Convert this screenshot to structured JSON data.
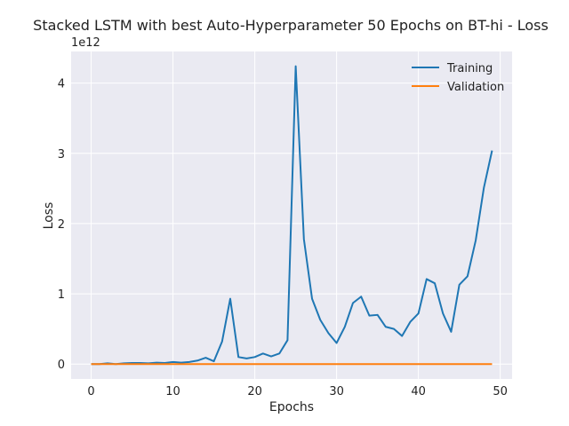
{
  "chart_data": {
    "type": "line",
    "title": "Stacked LSTM with best Auto-Hyperparameter 50 Epochs on BT-hi - Loss",
    "xlabel": "Epochs",
    "ylabel": "Loss",
    "y_offset_label": "1e12",
    "xlim": [
      -2.45,
      51.45
    ],
    "ylim": [
      -0.212,
      4.45
    ],
    "x_ticks": [
      0,
      10,
      20,
      30,
      40,
      50
    ],
    "y_ticks": [
      0,
      1,
      2,
      3,
      4
    ],
    "grid": true,
    "legend_position": "top-right",
    "x": [
      0,
      1,
      2,
      3,
      4,
      5,
      6,
      7,
      8,
      9,
      10,
      11,
      12,
      13,
      14,
      15,
      16,
      17,
      18,
      19,
      20,
      21,
      22,
      23,
      24,
      25,
      26,
      27,
      28,
      29,
      30,
      31,
      32,
      33,
      34,
      35,
      36,
      37,
      38,
      39,
      40,
      41,
      42,
      43,
      44,
      45,
      46,
      47,
      48,
      49
    ],
    "series": [
      {
        "name": "Training",
        "color": "#1f77b4",
        "values": [
          0.0,
          0.0,
          0.01,
          0.0,
          0.01,
          0.015,
          0.015,
          0.01,
          0.02,
          0.015,
          0.03,
          0.02,
          0.03,
          0.05,
          0.09,
          0.04,
          0.32,
          0.93,
          0.1,
          0.08,
          0.1,
          0.15,
          0.11,
          0.15,
          0.34,
          4.24,
          1.78,
          0.93,
          0.63,
          0.44,
          0.3,
          0.53,
          0.87,
          0.96,
          0.69,
          0.7,
          0.53,
          0.5,
          0.4,
          0.6,
          0.72,
          1.21,
          1.15,
          0.72,
          0.46,
          1.13,
          1.25,
          1.76,
          2.51,
          3.04
        ]
      },
      {
        "name": "Validation",
        "color": "#ff7f0e",
        "values": [
          0.0,
          0.0,
          0.0,
          0.0,
          0.0,
          0.0,
          0.0,
          0.0,
          0.0,
          0.0,
          0.0,
          0.0,
          0.0,
          0.0,
          0.0,
          0.0,
          0.0,
          0.0,
          0.0,
          0.0,
          0.0,
          0.0,
          0.0,
          0.0,
          0.0,
          0.0,
          0.0,
          0.0,
          0.0,
          0.0,
          0.0,
          0.0,
          0.0,
          0.0,
          0.0,
          0.0,
          0.0,
          0.0,
          0.0,
          0.0,
          0.0,
          0.0,
          0.0,
          0.0,
          0.0,
          0.0,
          0.0,
          0.0,
          0.0,
          0.0
        ]
      }
    ],
    "colors": {
      "plot_background": "#eaeaf2",
      "grid": "#ffffff"
    }
  }
}
